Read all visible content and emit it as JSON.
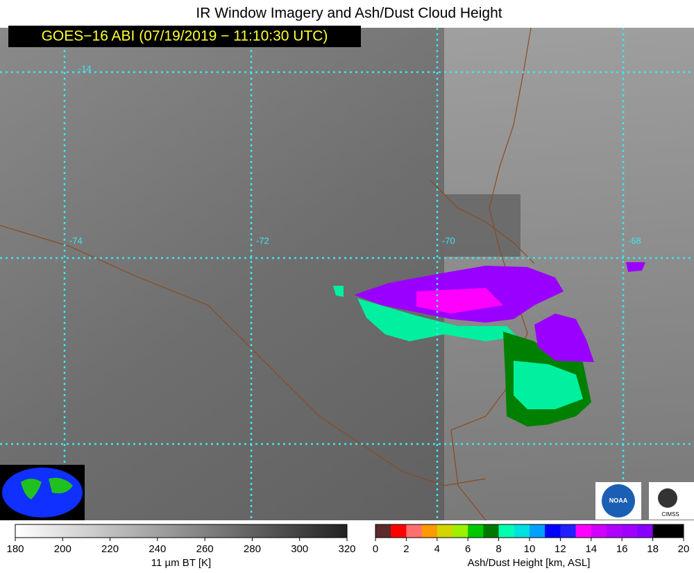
{
  "title": "IR Window Imagery and Ash/Dust Cloud Height",
  "subtitle": "GOES−16 ABI (07/19/2019 − 11:10:30 UTC)",
  "map": {
    "lat_labels": [
      "-14"
    ],
    "lon_labels": [
      "-74",
      "-72",
      "-70",
      "-68"
    ]
  },
  "legend_ir": {
    "range": [
      180,
      320
    ],
    "ticks": [
      180,
      200,
      220,
      240,
      260,
      280,
      300,
      320
    ],
    "label": "11 µm BT [K]"
  },
  "legend_ash": {
    "range": [
      0,
      20
    ],
    "ticks": [
      0,
      2,
      4,
      6,
      8,
      10,
      12,
      14,
      16,
      18,
      20
    ],
    "label": "Ash/Dust Height [km, ASL]",
    "colors": [
      "#5b2a2a",
      "#ff0000",
      "#ff6f6f",
      "#ff9900",
      "#d4d400",
      "#9cf000",
      "#00c800",
      "#007800",
      "#00ffb0",
      "#00e0e0",
      "#00a0ff",
      "#0000ff",
      "#2020ff",
      "#ff00ff",
      "#d000ff",
      "#b000ff",
      "#a000ff",
      "#8800ff",
      "#000000",
      "#000000"
    ]
  },
  "logos": [
    "NOAA",
    "CIMSS"
  ]
}
